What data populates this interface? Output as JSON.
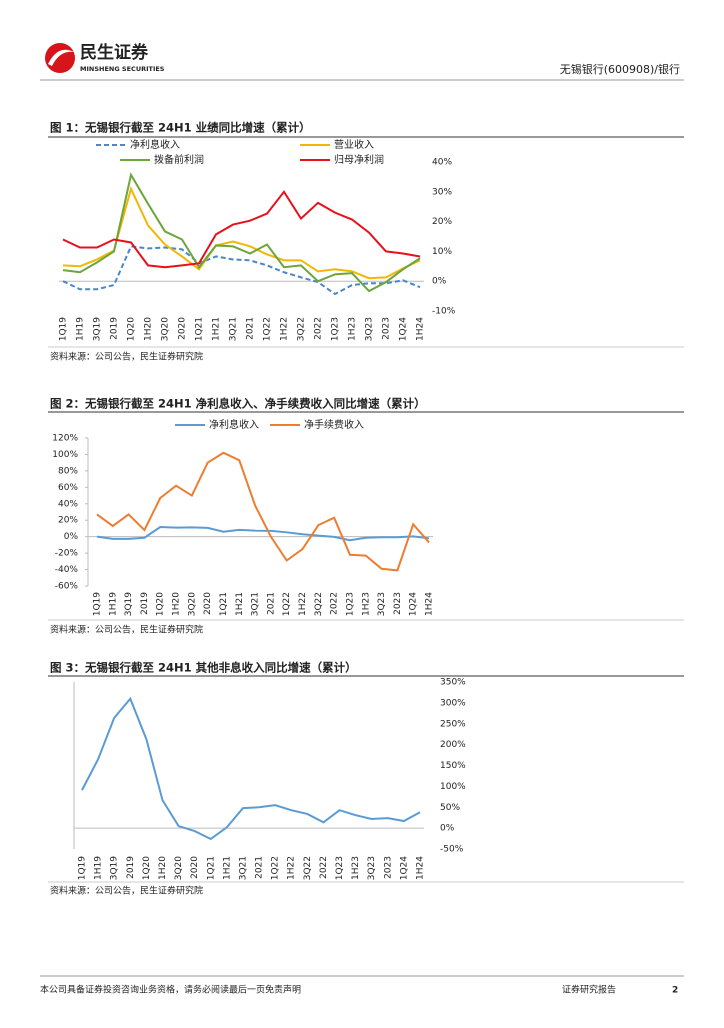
{
  "header": {
    "logo_cn": "民生证券",
    "logo_en": "MINSHENG SECURITIES",
    "stock": "无锡银行(600908)/银行"
  },
  "chart_data": [
    {
      "type": "line",
      "title": "图 1：无锡银行截至 24H1 业绩同比增速（累计）",
      "source": "资料来源：公司公告，民生证券研究院",
      "categories": [
        "1Q19",
        "1H19",
        "3Q19",
        "2019",
        "1Q20",
        "1H20",
        "3Q20",
        "2020",
        "1Q21",
        "1H21",
        "3Q21",
        "2021",
        "1Q22",
        "1H22",
        "3Q22",
        "2022",
        "1Q23",
        "1H23",
        "3Q23",
        "2023",
        "1Q24",
        "1H24"
      ],
      "ylim": [
        -10,
        40
      ],
      "yaxis_position": "right",
      "yticks": [
        {
          "value": -10,
          "label": "-10%"
        },
        {
          "value": 0,
          "label": "0%"
        },
        {
          "value": 10,
          "label": "10%"
        },
        {
          "value": 20,
          "label": "20%"
        },
        {
          "value": 30,
          "label": "30%"
        },
        {
          "value": 40,
          "label": "40%"
        }
      ],
      "series": [
        {
          "name": "净利息收入",
          "color": "#4a86c8",
          "style": "dashed",
          "values": [
            0,
            -2.7,
            -2.7,
            -1.3,
            11.7,
            11,
            11.3,
            10.7,
            6,
            8.3,
            7.3,
            7,
            5.3,
            3,
            1.3,
            -0.3,
            -4.3,
            -1.3,
            -0.7,
            -0.7,
            0.3,
            -2
          ]
        },
        {
          "name": "营业收入",
          "color": "#f2b705",
          "style": "solid",
          "values": [
            5.3,
            5,
            7.3,
            10.3,
            31,
            18.7,
            12.3,
            8.3,
            4,
            12,
            13.3,
            11.7,
            9,
            7,
            7,
            3.3,
            4,
            3.3,
            1,
            1.3,
            4.3,
            7
          ]
        },
        {
          "name": "拨备前利润",
          "color": "#6aa63a",
          "style": "solid",
          "values": [
            3.7,
            3,
            6.3,
            10,
            35.7,
            26,
            16.7,
            14,
            4.7,
            12,
            11.7,
            9.3,
            12.3,
            4.7,
            5.3,
            0,
            2.3,
            2.7,
            -3.3,
            -0.3,
            4,
            7.7
          ]
        },
        {
          "name": "归母净利润",
          "color": "#e8101a",
          "style": "solid",
          "values": [
            14,
            11.3,
            11.3,
            14,
            13,
            5.3,
            4.7,
            5.3,
            6,
            15.7,
            19,
            20.3,
            22.7,
            30,
            21,
            26.3,
            23,
            20.7,
            16.3,
            10,
            9.3,
            8.3
          ]
        }
      ]
    },
    {
      "type": "line",
      "title": "图 2：无锡银行截至 24H1 净利息收入、净手续费收入同比增速（累计）",
      "source": "资料来源：公司公告，民生证券研究院",
      "categories": [
        "1Q19",
        "1H19",
        "3Q19",
        "2019",
        "1Q20",
        "1H20",
        "3Q20",
        "2020",
        "1Q21",
        "1H21",
        "3Q21",
        "2021",
        "1Q22",
        "1H22",
        "3Q22",
        "2022",
        "1Q23",
        "1H23",
        "3Q23",
        "2023",
        "1Q24",
        "1H24"
      ],
      "ylim": [
        -60,
        120
      ],
      "yaxis_position": "left",
      "yticks": [
        {
          "value": -60,
          "label": "-60%"
        },
        {
          "value": -40,
          "label": "-40%"
        },
        {
          "value": -20,
          "label": "-20%"
        },
        {
          "value": 0,
          "label": "0%"
        },
        {
          "value": 20,
          "label": "20%"
        },
        {
          "value": 40,
          "label": "40%"
        },
        {
          "value": 60,
          "label": "60%"
        },
        {
          "value": 80,
          "label": "80%"
        },
        {
          "value": 100,
          "label": "100%"
        },
        {
          "value": 120,
          "label": "120%"
        }
      ],
      "series": [
        {
          "name": "净利息收入",
          "color": "#5b9bd5",
          "style": "solid",
          "values": [
            0,
            -2.7,
            -2.7,
            -1.3,
            11.7,
            11,
            11.3,
            10.7,
            6,
            8.3,
            7.3,
            7,
            5.3,
            3,
            1.3,
            -0.3,
            -4.3,
            -1.3,
            -0.7,
            -0.7,
            0.3,
            -2
          ]
        },
        {
          "name": "净手续费收入",
          "color": "#ed7d31",
          "style": "solid",
          "values": [
            27,
            13,
            27,
            8,
            47,
            62,
            50,
            90,
            102,
            93,
            38,
            0,
            -29,
            -15,
            14,
            23,
            -22,
            -23,
            -39,
            -41,
            15,
            -7
          ]
        }
      ]
    },
    {
      "type": "line",
      "title": "图 3：无锡银行截至 24H1 其他非息收入同比增速（累计）",
      "source": "资料来源：公司公告，民生证券研究院",
      "categories": [
        "1Q19",
        "1H19",
        "3Q19",
        "2019",
        "1Q20",
        "1H20",
        "3Q20",
        "2020",
        "1Q21",
        "1H21",
        "3Q21",
        "2021",
        "1Q22",
        "1H22",
        "3Q22",
        "2022",
        "1Q23",
        "1H23",
        "3Q23",
        "2023",
        "1Q24",
        "1H24"
      ],
      "ylim": [
        -50,
        350
      ],
      "yaxis_position": "right",
      "yticks": [
        {
          "value": -50,
          "label": "-50%"
        },
        {
          "value": 0,
          "label": "0%"
        },
        {
          "value": 50,
          "label": "50%"
        },
        {
          "value": 100,
          "label": "100%"
        },
        {
          "value": 150,
          "label": "150%"
        },
        {
          "value": 200,
          "label": "200%"
        },
        {
          "value": 250,
          "label": "250%"
        },
        {
          "value": 300,
          "label": "300%"
        },
        {
          "value": 350,
          "label": "350%"
        }
      ],
      "color": "#5b9bd5",
      "values": [
        91,
        165,
        264,
        310,
        213,
        67,
        5,
        -7,
        -26,
        2,
        48,
        50,
        55,
        43,
        34,
        14,
        43,
        31,
        22,
        24,
        17,
        38
      ]
    }
  ],
  "footer": {
    "disclaimer": "本公司具备证券投资咨询业务资格，请务必阅读最后一页免责声明",
    "label": "证券研究报告",
    "page": 2
  }
}
